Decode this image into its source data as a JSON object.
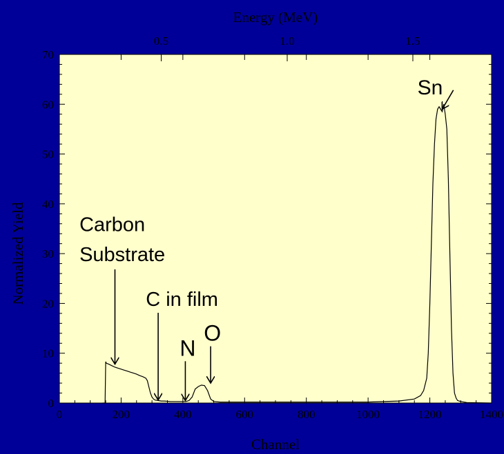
{
  "chart_data": {
    "type": "line",
    "title": "",
    "xlabel": "Channel",
    "ylabel": "Normalized Yield",
    "x2label": "Energy (MeV)",
    "xlim": [
      0,
      1400
    ],
    "ylim": [
      0,
      70
    ],
    "grid": false,
    "background_color": "#000099",
    "plot_background_color": "#FFFFCC",
    "line_color": "#000000",
    "x_ticks": [
      0,
      200,
      400,
      600,
      800,
      1000,
      1200,
      1400
    ],
    "x_tick_labels": [
      "0",
      "200",
      "400",
      "600",
      "800",
      "1000",
      "1200",
      "1400"
    ],
    "y_ticks": [
      0,
      10,
      20,
      30,
      40,
      50,
      60,
      70
    ],
    "y_tick_labels": [
      "0",
      "10",
      "20",
      "30",
      "40",
      "50",
      "60",
      "70"
    ],
    "x2_ticks_channel": [
      330,
      738,
      1145
    ],
    "x2_tick_labels": [
      "0.5",
      "1.0",
      "1.5"
    ],
    "series": [
      {
        "x": [
          140,
          148,
          150,
          152,
          160,
          170,
          180,
          190,
          200,
          210,
          220,
          230,
          240,
          250,
          260,
          270,
          280,
          285,
          290,
          295,
          300,
          305,
          310,
          320,
          330,
          340,
          360,
          380,
          400,
          410,
          420,
          430,
          440,
          450,
          460,
          470,
          480,
          490,
          500,
          520,
          560,
          600,
          700,
          800,
          900,
          1000,
          1100,
          1150,
          1170,
          1180,
          1190,
          1195,
          1200,
          1205,
          1210,
          1215,
          1220,
          1225,
          1230,
          1235,
          1240,
          1245,
          1250,
          1255,
          1260,
          1265,
          1270,
          1275,
          1280,
          1285,
          1290,
          1300,
          1320,
          1400
        ],
        "y": [
          0,
          0,
          8.3,
          8.0,
          7.8,
          7.5,
          7.2,
          7.0,
          6.8,
          6.6,
          6.4,
          6.2,
          6.0,
          5.8,
          5.5,
          5.3,
          5.0,
          4.5,
          3.2,
          2.0,
          1.2,
          0.8,
          0.6,
          0.5,
          0.4,
          0.4,
          0.3,
          0.3,
          0.3,
          0.3,
          0.5,
          1.2,
          2.8,
          3.3,
          3.6,
          3.5,
          2.5,
          0.8,
          0.3,
          0.2,
          0.2,
          0.2,
          0.2,
          0.2,
          0.2,
          0.2,
          0.4,
          0.8,
          1.5,
          2.5,
          5.0,
          10.0,
          20.0,
          32.0,
          44.0,
          52.0,
          57.0,
          59.0,
          59.5,
          59.0,
          58.5,
          60.0,
          58.0,
          55.0,
          45.0,
          30.0,
          15.0,
          6.0,
          2.0,
          1.0,
          0.5,
          0.3,
          0.1,
          0.0
        ]
      }
    ],
    "annotations": [
      {
        "text": "Sn",
        "x": 1160,
        "y": 62,
        "arrow_to_x": 1240,
        "arrow_to_y": 59
      },
      {
        "text": "Carbon",
        "x": 65,
        "y": 34.5
      },
      {
        "text": "Substrate",
        "x": 65,
        "y": 28.5,
        "arrow_to_x": 180,
        "arrow_to_y": 7.8
      },
      {
        "text": "C in film",
        "x": 280,
        "y": 19.5,
        "arrow_to_x": 320,
        "arrow_to_y": 0.6
      },
      {
        "text": "N",
        "x": 390,
        "y": 9.5,
        "arrow_to_x": 408,
        "arrow_to_y": 0.5
      },
      {
        "text": "O",
        "x": 468,
        "y": 12.5,
        "arrow_to_x": 490,
        "arrow_to_y": 4.0
      }
    ]
  }
}
